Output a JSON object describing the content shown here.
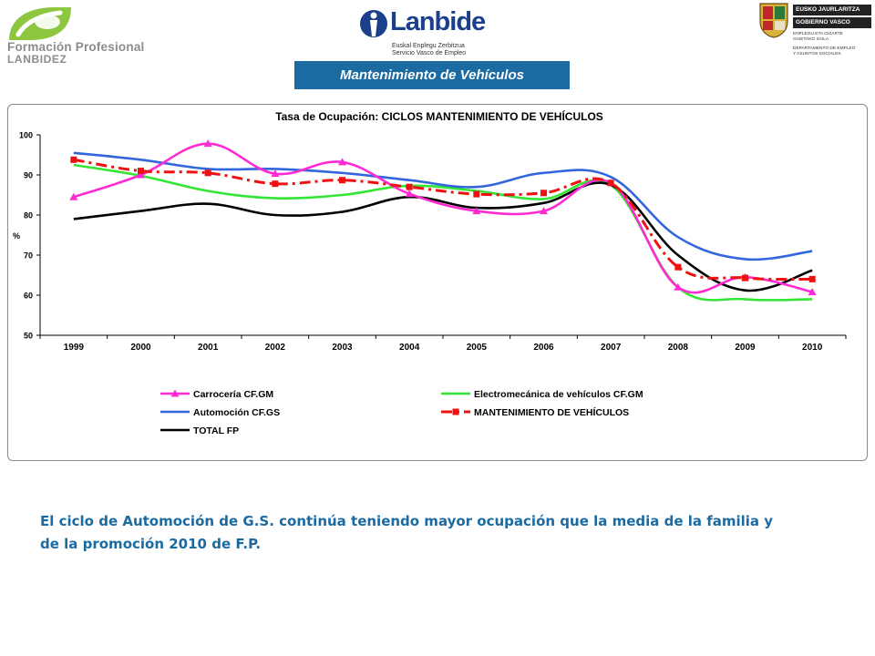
{
  "header": {
    "logo_fp": {
      "line1": "Formación Profesional",
      "line2": "LANBIDEZ",
      "colors": [
        "#8dc63f",
        "#8c8c8c"
      ]
    },
    "logo_lanbide": {
      "name": "Lanbide",
      "sub1": "Euskal Enplegu Zerbitzua",
      "sub2": "Servicio Vasco de Empleo",
      "color": "#1b3f8b"
    },
    "logo_gv": {
      "bar1": "EUSKO JAURLARITZA",
      "bar2": "GOBIERNO VASCO",
      "small": [
        "ENPLEGU ETA GIZARTE",
        "GAIETAKO SAILA",
        "DEPARTAMENTO DE EMPLEO",
        "Y ASUNTOS SOCIALES"
      ]
    },
    "title": "Mantenimiento de Vehículos",
    "title_bg": "#1b6aa2"
  },
  "chart_data": {
    "type": "line",
    "title": "Tasa de Ocupación: CICLOS MANTENIMIENTO DE VEHÍCULOS",
    "xlabel": "",
    "ylabel": "%",
    "categories": [
      "1999",
      "2000",
      "2001",
      "2002",
      "2003",
      "2004",
      "2005",
      "2006",
      "2007",
      "2008",
      "2009",
      "2010"
    ],
    "ylim": [
      50,
      100
    ],
    "yticks": [
      "50",
      "60",
      "70",
      "80",
      "90",
      "100"
    ],
    "grid": false,
    "legend_position": "bottom",
    "series": [
      {
        "name": "Carrocería CF.GM",
        "color": "#ff2ad4",
        "marker": "triangle",
        "dash": "solid",
        "values": [
          84.5,
          90.0,
          97.8,
          90.3,
          93.2,
          85.3,
          81.0,
          81.0,
          88.0,
          62.0,
          64.5,
          60.8
        ]
      },
      {
        "name": "Electromecánica de vehículos CF.GM",
        "color": "#33e633",
        "marker": "none",
        "dash": "solid",
        "values": [
          92.5,
          89.8,
          86.0,
          84.2,
          85.0,
          87.3,
          86.0,
          84.0,
          87.5,
          62.0,
          59.0,
          59.0
        ]
      },
      {
        "name": "Automoción CF.GS",
        "color": "#3366dd",
        "marker": "none",
        "dash": "solid",
        "values": [
          95.5,
          93.8,
          91.5,
          91.5,
          90.5,
          88.7,
          87.0,
          90.5,
          89.5,
          74.5,
          69.0,
          71.0
        ]
      },
      {
        "name": "MANTENIMIENTO DE VEHÍCULOS",
        "color": "#ee1111",
        "marker": "square",
        "dash": "dashdot",
        "values": [
          93.8,
          91.0,
          90.5,
          87.8,
          88.7,
          87.0,
          85.2,
          85.5,
          88.0,
          67.0,
          64.3,
          64.0
        ]
      },
      {
        "name": "TOTAL FP",
        "color": "#000000",
        "marker": "none",
        "dash": "solid",
        "values": [
          79.0,
          81.0,
          82.8,
          80.0,
          80.8,
          84.5,
          81.8,
          83.0,
          87.5,
          70.0,
          61.2,
          66.2
        ]
      }
    ]
  },
  "commentary": {
    "line1": "El ciclo de Automoción de G.S. continúa teniendo mayor ocupación que la media de la familia y",
    "line2": "de la promoción 2010 de F.P."
  }
}
